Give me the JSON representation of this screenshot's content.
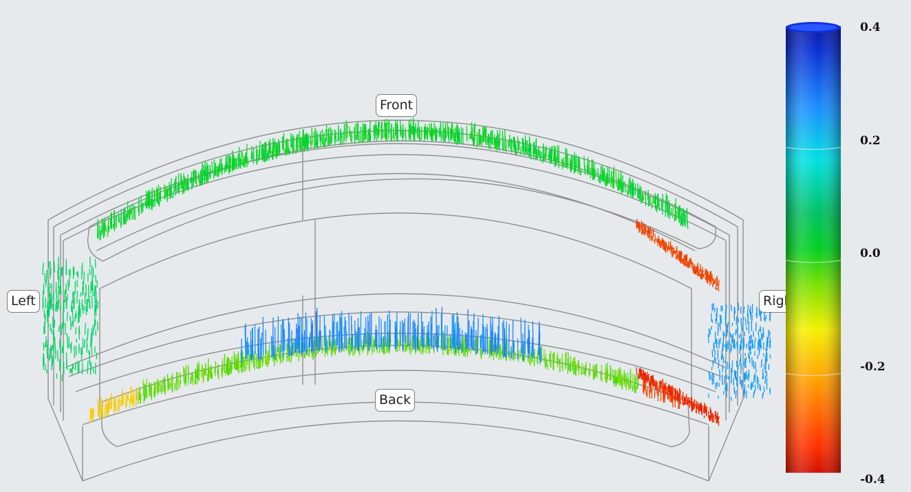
{
  "view_labels": {
    "front": "Front",
    "back": "Back",
    "left": "Left",
    "right": "Right"
  },
  "colorbar": {
    "min": -0.4,
    "max": 0.4,
    "ticks": [
      "0.4",
      "0.2",
      "0.0",
      "-0.2",
      "-0.4"
    ],
    "tick_values": [
      0.4,
      0.2,
      0.0,
      -0.2,
      -0.4
    ],
    "colormap": [
      "#ff2a00",
      "#ffa500",
      "#f5f000",
      "#00e000",
      "#00e8e8",
      "#1a7bff",
      "#0a1fc8"
    ]
  },
  "colors": {
    "background": "#e6eaed",
    "wireframe": "#8a8a8a"
  }
}
